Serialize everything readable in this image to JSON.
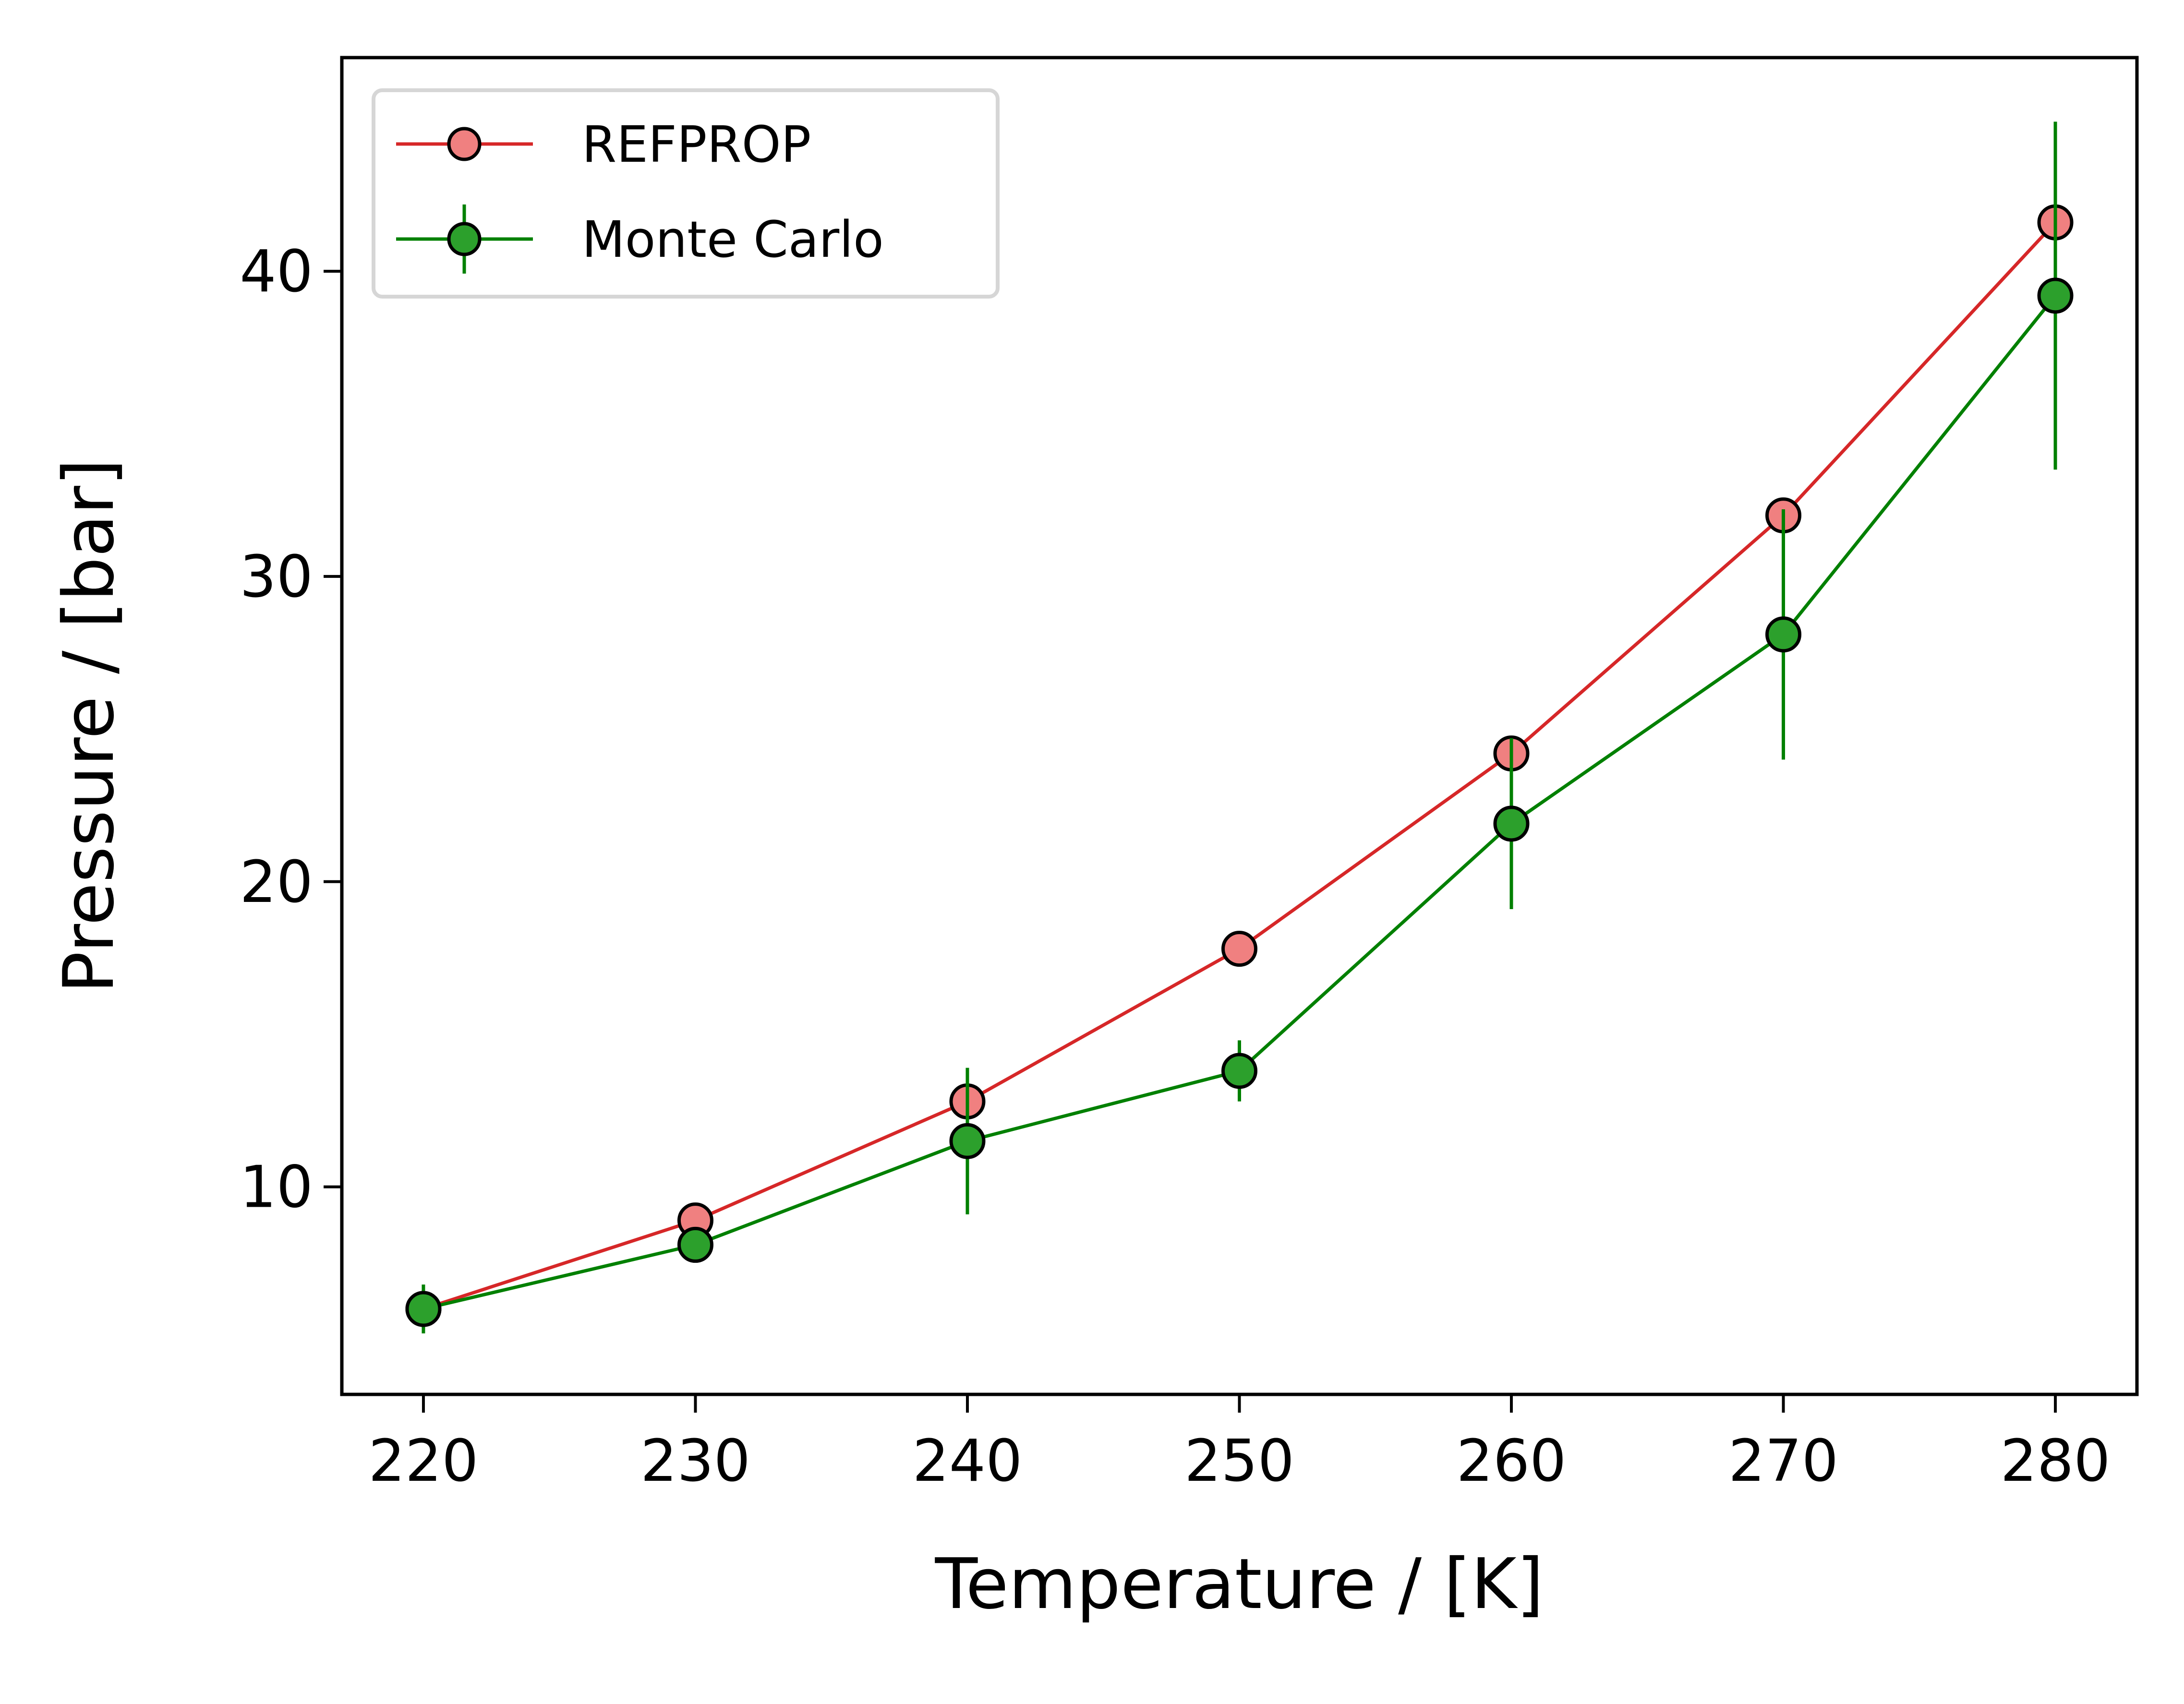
{
  "chart_data": {
    "type": "line",
    "title": "",
    "xlabel": "Temperature / [K]",
    "ylabel": "Pressure / [bar]",
    "xlim": [
      217,
      283
    ],
    "ylim": [
      3.2,
      47
    ],
    "xticks": [
      220,
      230,
      240,
      250,
      260,
      270,
      280
    ],
    "yticks": [
      10,
      20,
      30,
      40
    ],
    "grid": false,
    "legend_position": "top-left",
    "x": [
      220,
      230,
      240,
      250,
      260,
      270,
      280
    ],
    "series": [
      {
        "name": "REFPROP",
        "color": "#d62728",
        "marker_fill": "#f08080",
        "values": [
          6.0,
          8.9,
          12.8,
          17.8,
          24.2,
          32.0,
          41.6
        ],
        "errors": null
      },
      {
        "name": "Monte Carlo",
        "color": "#008000",
        "marker_fill": "#2ca02c",
        "values": [
          6.0,
          8.1,
          11.5,
          13.8,
          21.9,
          28.1,
          39.2
        ],
        "errors": [
          0.8,
          0.2,
          2.4,
          1.0,
          2.8,
          4.1,
          5.7
        ]
      }
    ]
  }
}
